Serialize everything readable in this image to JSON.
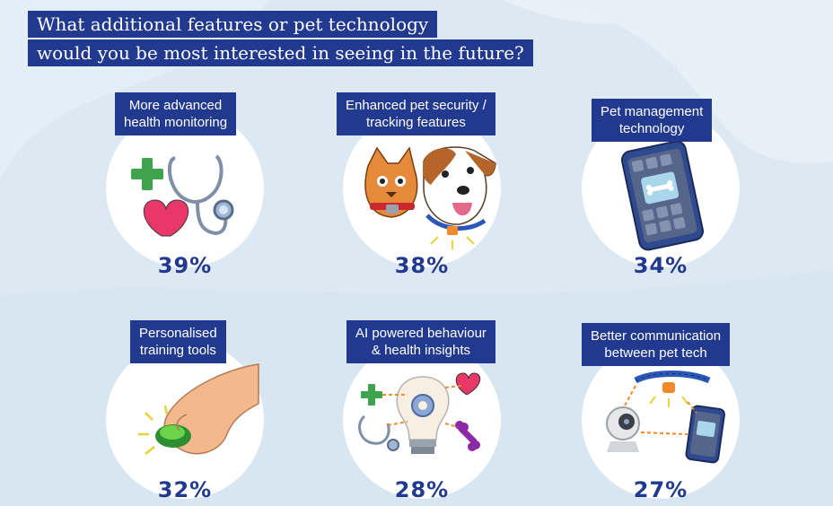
{
  "title": {
    "line1": "What additional features or pet technology",
    "line2": "would you be most interested in seeing in the future?"
  },
  "cards": [
    {
      "label_line1": "More advanced",
      "label_line2": "health monitoring",
      "percent": "39%",
      "value": 39,
      "icon": "stethoscope-heart-plus-icon"
    },
    {
      "label_line1": "Enhanced pet security /",
      "label_line2": "tracking features",
      "percent": "38%",
      "value": 38,
      "icon": "cat-dog-collar-icon"
    },
    {
      "label_line1": "Pet management",
      "label_line2": "technology",
      "percent": "34%",
      "value": 34,
      "icon": "smartphone-app-icon"
    },
    {
      "label_line1": "Personalised",
      "label_line2": "training tools",
      "percent": "32%",
      "value": 32,
      "icon": "hand-clicker-icon"
    },
    {
      "label_line1": "AI powered behaviour",
      "label_line2": "& health insights",
      "percent": "28%",
      "value": 28,
      "icon": "lightbulb-gear-icon"
    },
    {
      "label_line1": "Better communication",
      "label_line2": "between pet tech",
      "percent": "27%",
      "value": 27,
      "icon": "connected-devices-icon"
    }
  ],
  "colors": {
    "navy": "#213a8f",
    "background": "#dde9f2",
    "green": "#3fa34d",
    "pink": "#e8386a",
    "orange": "#f08a2c"
  }
}
